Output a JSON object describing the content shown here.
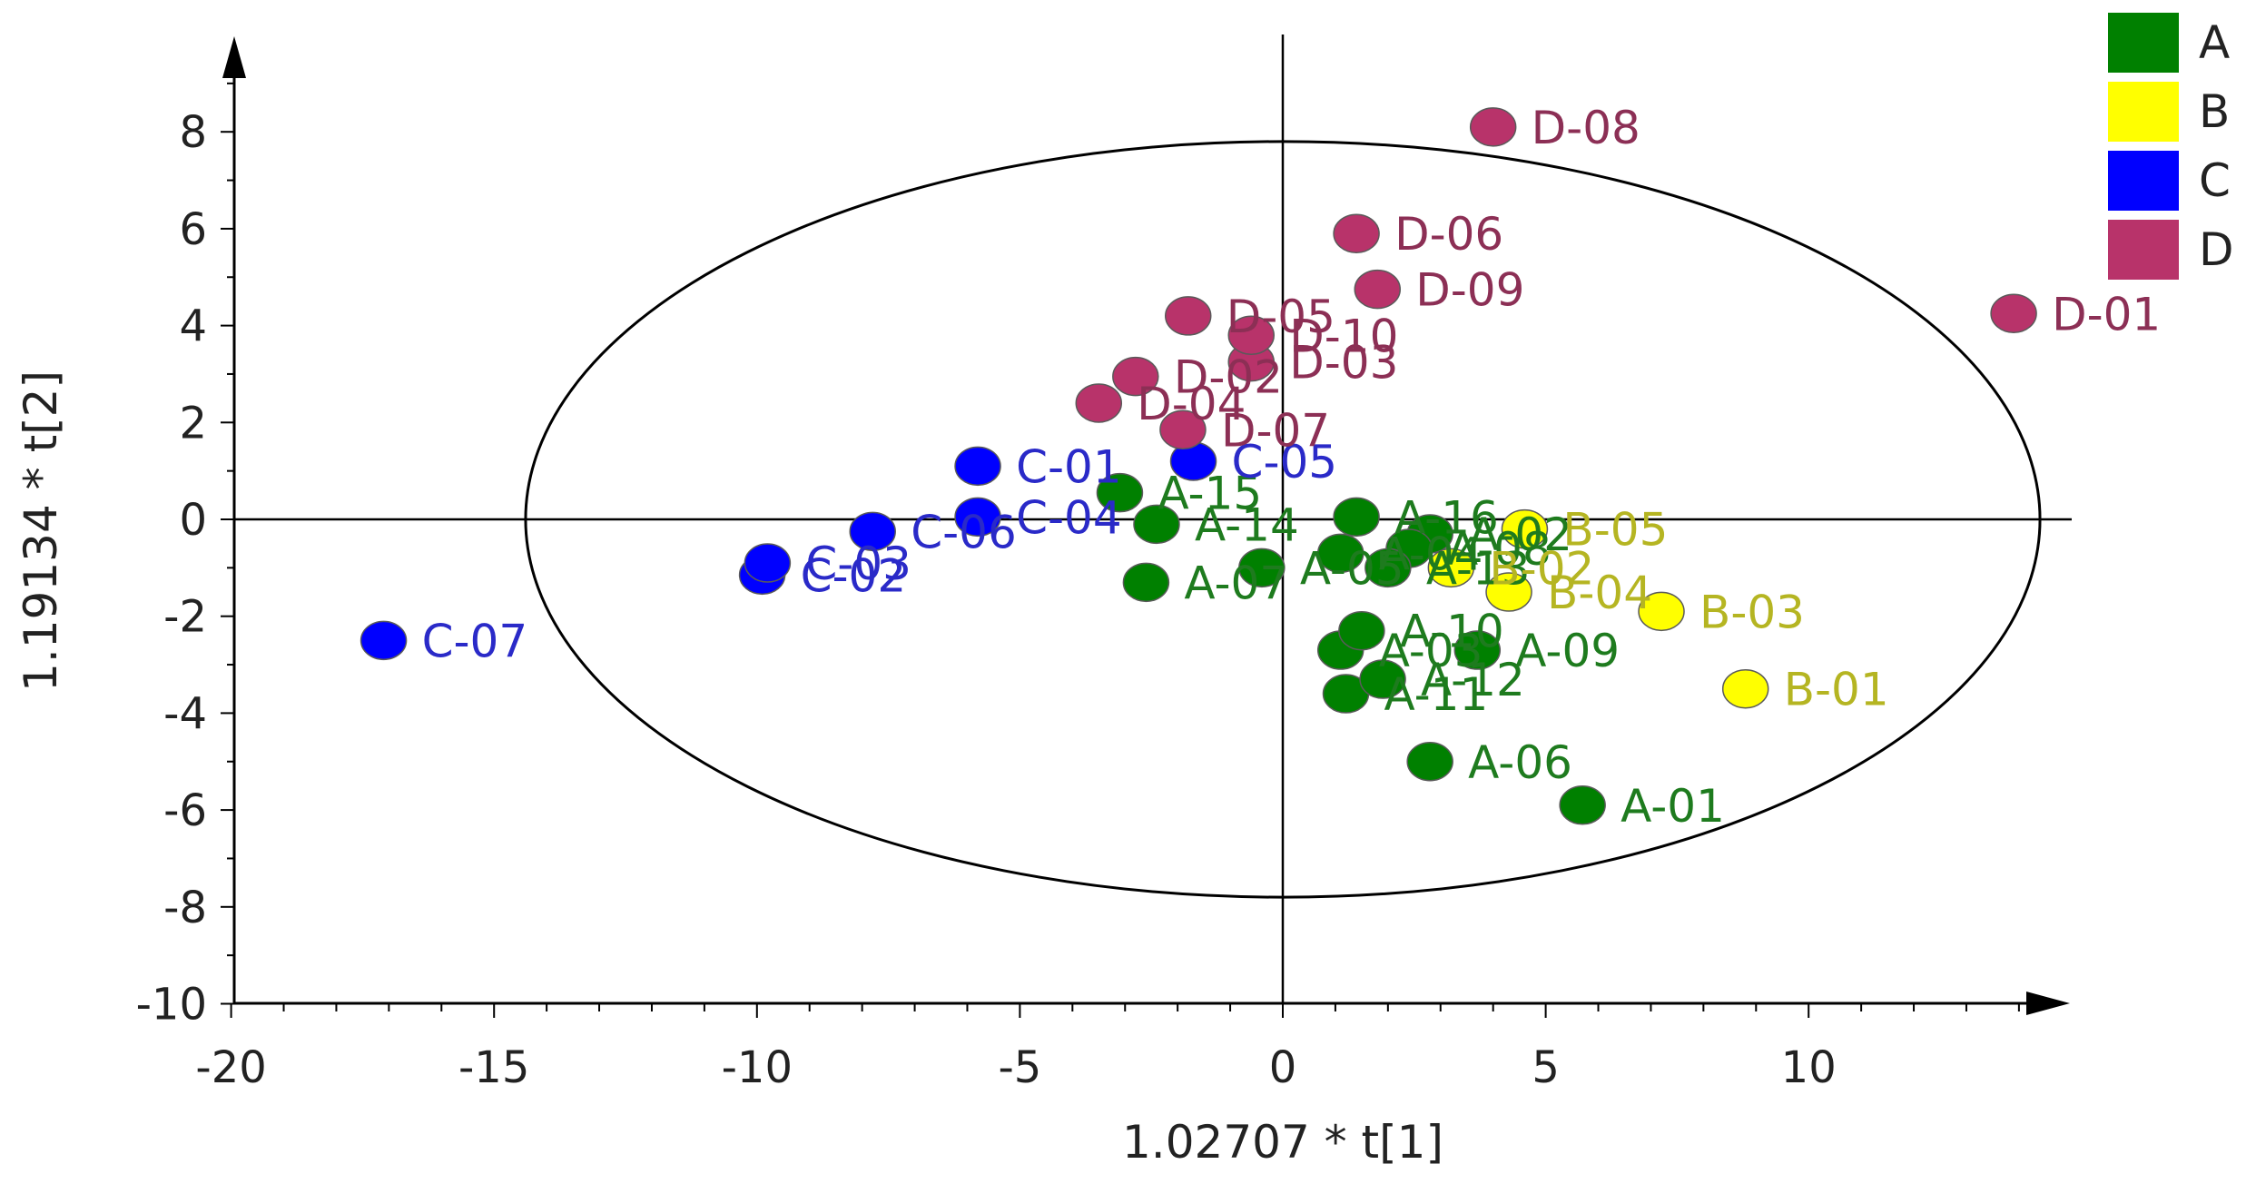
{
  "chart_data": {
    "type": "scatter",
    "title": "",
    "xlabel": "1.02707 * t[1]",
    "ylabel": "1.19134 * t[2]",
    "xlim": [
      -20,
      15
    ],
    "ylim": [
      -10,
      9.5
    ],
    "xticks": [
      -20,
      -15,
      -10,
      -5,
      0,
      5,
      10
    ],
    "yticks": [
      -10,
      -8,
      -6,
      -4,
      -2,
      0,
      2,
      4,
      6,
      8
    ],
    "xtick_labels": [
      "-20",
      "-15",
      "-10",
      "-5",
      "0",
      "5",
      "10"
    ],
    "ytick_labels": [
      "-10",
      "-8",
      "-6",
      "-4",
      "-2",
      "0",
      "2",
      "4",
      "6",
      "8"
    ],
    "grid": false,
    "legend_position": "top-right",
    "ellipse": {
      "cx": 0,
      "cy": 0,
      "rx": 14.4,
      "ry": 7.8
    },
    "series": [
      {
        "name": "A",
        "color": "#008000",
        "label_color": "#1E7B1E",
        "points": [
          {
            "label": "A-01",
            "x": 5.7,
            "y": -5.9
          },
          {
            "label": "A-02",
            "x": 2.8,
            "y": -0.3
          },
          {
            "label": "A-03",
            "x": 1.1,
            "y": -2.7
          },
          {
            "label": "A-04",
            "x": 1.1,
            "y": -0.7
          },
          {
            "label": "A-05",
            "x": -0.4,
            "y": -1.0
          },
          {
            "label": "A-06",
            "x": 2.8,
            "y": -5.0
          },
          {
            "label": "A-07",
            "x": -2.6,
            "y": -1.3
          },
          {
            "label": "A-08",
            "x": 2.4,
            "y": -0.6
          },
          {
            "label": "A-09",
            "x": 3.7,
            "y": -2.7
          },
          {
            "label": "A-10",
            "x": 1.5,
            "y": -2.3
          },
          {
            "label": "A-11",
            "x": 1.2,
            "y": -3.6
          },
          {
            "label": "A-12",
            "x": 1.9,
            "y": -3.3
          },
          {
            "label": "A-13",
            "x": 2.0,
            "y": -1.0
          },
          {
            "label": "A-14",
            "x": -2.4,
            "y": -0.1
          },
          {
            "label": "A-15",
            "x": -3.1,
            "y": 0.55
          },
          {
            "label": "A-16",
            "x": 1.4,
            "y": 0.05
          }
        ]
      },
      {
        "name": "B",
        "color": "#FFFF00",
        "label_color": "#B5B522",
        "points": [
          {
            "label": "B-01",
            "x": 8.8,
            "y": -3.5
          },
          {
            "label": "B-02",
            "x": 3.2,
            "y": -1.0
          },
          {
            "label": "B-03",
            "x": 7.2,
            "y": -1.9
          },
          {
            "label": "B-04",
            "x": 4.3,
            "y": -1.5
          },
          {
            "label": "B-05",
            "x": 4.6,
            "y": -0.2
          }
        ]
      },
      {
        "name": "C",
        "color": "#0000FF",
        "label_color": "#2A2AC8",
        "points": [
          {
            "label": "C-01",
            "x": -5.8,
            "y": 1.1
          },
          {
            "label": "C-02",
            "x": -9.9,
            "y": -1.15
          },
          {
            "label": "C-03",
            "x": -9.8,
            "y": -0.9
          },
          {
            "label": "C-04",
            "x": -5.8,
            "y": 0.05
          },
          {
            "label": "C-05",
            "x": -1.7,
            "y": 1.2
          },
          {
            "label": "C-06",
            "x": -7.8,
            "y": -0.25
          },
          {
            "label": "C-07",
            "x": -17.1,
            "y": -2.5
          }
        ]
      },
      {
        "name": "D",
        "color": "#B8336A",
        "label_color": "#8C2F55",
        "points": [
          {
            "label": "D-01",
            "x": 13.9,
            "y": 4.25
          },
          {
            "label": "D-02",
            "x": -2.8,
            "y": 2.95
          },
          {
            "label": "D-03",
            "x": -0.6,
            "y": 3.25
          },
          {
            "label": "D-04",
            "x": -3.5,
            "y": 2.4
          },
          {
            "label": "D-05",
            "x": -1.8,
            "y": 4.2
          },
          {
            "label": "D-06",
            "x": 1.4,
            "y": 5.9
          },
          {
            "label": "D-07",
            "x": -1.9,
            "y": 1.85
          },
          {
            "label": "D-08",
            "x": 4.0,
            "y": 8.1
          },
          {
            "label": "D-09",
            "x": 1.8,
            "y": 4.75
          },
          {
            "label": "D-10",
            "x": -0.6,
            "y": 3.8
          }
        ]
      }
    ]
  }
}
